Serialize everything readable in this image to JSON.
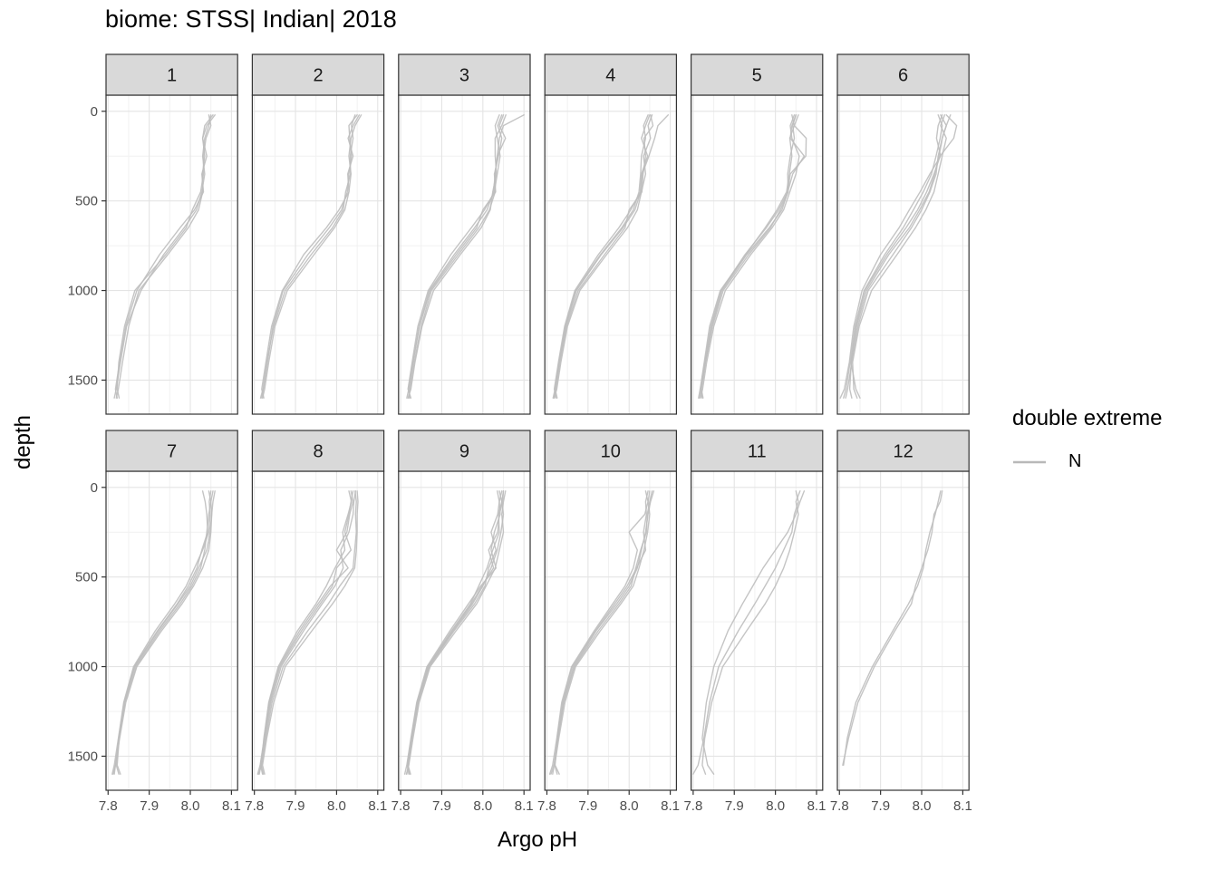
{
  "title": "biome: STSS| Indian| 2018",
  "axes": {
    "x_label": "Argo pH",
    "y_label": "depth",
    "x_ticks": [
      7.8,
      7.9,
      8.0,
      8.1
    ],
    "x_tick_labels": [
      "7.8",
      "7.9",
      "8.0",
      "8.1"
    ],
    "x_minor": [
      7.85,
      7.95,
      8.05
    ],
    "y_ticks": [
      0,
      500,
      1000,
      1500
    ],
    "y_tick_labels": [
      "0",
      "500",
      "1000",
      "1500"
    ],
    "y_minor": [
      250,
      750,
      1250
    ],
    "x_domain": [
      7.795,
      8.115
    ],
    "y_domain": [
      -90,
      1690
    ],
    "y_reversed": true
  },
  "legend": {
    "title": "double extreme",
    "entries": [
      {
        "label": "N",
        "color": "#b8b8b8"
      }
    ]
  },
  "colors": {
    "line": "#bebebe",
    "strip_fill": "#d9d9d9",
    "border": "#333333",
    "grid_major": "#e4e4e4",
    "grid_minor": "#f1f1f1",
    "tick_label": "#4d4d4d",
    "strip_label": "#1a1a1a"
  },
  "chart_data": {
    "type": "line",
    "facet_variable": "month",
    "x": "Argo pH",
    "y": "depth",
    "x_range": [
      7.8,
      8.1
    ],
    "y_range": [
      0,
      1600
    ],
    "line_color": "#bebebe",
    "series_group": "double extreme = N",
    "depths": [
      20,
      80,
      150,
      250,
      350,
      450,
      550,
      650,
      800,
      1000,
      1200,
      1400,
      1550,
      1600
    ],
    "facets": [
      {
        "label": "1",
        "profiles": [
          [
            8.055,
            8.035,
            8.03,
            8.035,
            8.03,
            8.03,
            8.02,
            7.995,
            7.945,
            7.875,
            7.85,
            7.835,
            7.825,
            7.82
          ],
          [
            8.05,
            8.045,
            8.035,
            8.03,
            8.035,
            8.028,
            8.015,
            7.985,
            7.935,
            7.88,
            7.845,
            7.83,
            7.82,
            7.815
          ],
          [
            8.06,
            8.04,
            8.03,
            8.04,
            8.028,
            8.032,
            8.01,
            7.975,
            7.925,
            7.87,
            7.843,
            7.828,
            7.818,
            7.822
          ],
          [
            8.045,
            8.05,
            8.038,
            8.032,
            8.032,
            8.025,
            8.005,
            7.99,
            7.94,
            7.865,
            7.84,
            7.826,
            7.822,
            7.827
          ]
        ]
      },
      {
        "label": "2",
        "profiles": [
          [
            8.05,
            8.03,
            8.032,
            8.036,
            8.03,
            8.026,
            8.012,
            7.982,
            7.93,
            7.87,
            7.845,
            7.832,
            7.822,
            7.818
          ],
          [
            8.06,
            8.045,
            8.035,
            8.03,
            8.035,
            8.03,
            8.02,
            7.995,
            7.945,
            7.88,
            7.85,
            7.835,
            7.825,
            7.82
          ],
          [
            8.055,
            8.04,
            8.028,
            8.04,
            8.027,
            8.03,
            8.006,
            7.975,
            7.92,
            7.868,
            7.842,
            7.828,
            7.818,
            7.823
          ],
          [
            8.045,
            8.036,
            8.04,
            8.033,
            8.034,
            8.022,
            8.016,
            7.99,
            7.938,
            7.875,
            7.847,
            7.83,
            7.821,
            7.815
          ]
        ]
      },
      {
        "label": "3",
        "profiles": [
          [
            8.1,
            8.05,
            8.04,
            8.035,
            8.03,
            8.026,
            8.01,
            7.98,
            7.93,
            7.87,
            7.845,
            7.83,
            7.82,
            7.815
          ],
          [
            8.05,
            8.04,
            8.055,
            8.035,
            8.03,
            8.03,
            8.016,
            7.99,
            7.94,
            7.875,
            7.85,
            7.833,
            7.823,
            7.82
          ],
          [
            8.04,
            8.03,
            8.035,
            8.042,
            8.035,
            8.028,
            8.004,
            7.972,
            7.922,
            7.867,
            7.842,
            7.828,
            7.818,
            7.825
          ],
          [
            8.056,
            8.046,
            8.03,
            8.03,
            8.033,
            8.024,
            8.018,
            7.996,
            7.945,
            7.88,
            7.852,
            7.835,
            7.825,
            7.818
          ],
          [
            8.046,
            8.036,
            8.046,
            8.038,
            8.028,
            8.031,
            8.0,
            7.985,
            7.935,
            7.872,
            7.846,
            7.83,
            7.82,
            7.822
          ]
        ]
      },
      {
        "label": "4",
        "profiles": [
          [
            8.095,
            8.07,
            8.062,
            8.048,
            8.032,
            8.028,
            8.014,
            7.985,
            7.932,
            7.872,
            7.846,
            7.83,
            7.82,
            7.815
          ],
          [
            8.05,
            8.04,
            8.03,
            8.045,
            8.03,
            8.027,
            8.004,
            7.975,
            7.925,
            7.868,
            7.843,
            7.828,
            7.818,
            7.822
          ],
          [
            8.056,
            8.046,
            8.052,
            8.035,
            8.04,
            8.03,
            8.02,
            7.996,
            7.945,
            7.88,
            7.85,
            7.834,
            7.824,
            7.818
          ],
          [
            8.046,
            8.035,
            8.04,
            8.03,
            8.028,
            8.024,
            8.01,
            7.982,
            7.93,
            7.87,
            7.845,
            7.83,
            7.82,
            7.825
          ],
          [
            8.052,
            8.058,
            8.036,
            8.04,
            8.034,
            8.031,
            8.0,
            7.99,
            7.94,
            7.876,
            7.848,
            7.832,
            7.822,
            7.817
          ]
        ]
      },
      {
        "label": "5",
        "profiles": [
          [
            8.04,
            8.046,
            8.075,
            8.074,
            8.036,
            8.03,
            8.016,
            7.985,
            7.93,
            7.87,
            7.845,
            7.83,
            7.82,
            7.815
          ],
          [
            8.05,
            8.04,
            8.036,
            8.07,
            8.042,
            8.03,
            8.008,
            7.978,
            7.926,
            7.868,
            7.843,
            7.828,
            7.818,
            7.822
          ],
          [
            8.046,
            8.036,
            8.04,
            8.058,
            8.05,
            8.035,
            8.02,
            7.992,
            7.94,
            7.878,
            7.85,
            7.833,
            7.823,
            7.818
          ],
          [
            8.056,
            8.046,
            8.035,
            8.04,
            8.034,
            8.027,
            8.004,
            7.975,
            7.928,
            7.866,
            7.84,
            7.827,
            7.817,
            7.813
          ],
          [
            8.05,
            8.042,
            8.046,
            8.036,
            8.03,
            8.031,
            8.012,
            7.988,
            7.935,
            7.873,
            7.847,
            7.83,
            7.82,
            7.824
          ]
        ]
      },
      {
        "label": "6",
        "profiles": [
          [
            8.06,
            8.085,
            8.078,
            8.045,
            8.03,
            8.012,
            7.99,
            7.962,
            7.915,
            7.862,
            7.84,
            7.828,
            7.84,
            7.85
          ],
          [
            8.05,
            8.04,
            8.036,
            8.046,
            8.02,
            7.996,
            7.97,
            7.945,
            7.9,
            7.855,
            7.835,
            7.824,
            7.812,
            7.802
          ],
          [
            8.046,
            8.06,
            8.05,
            8.04,
            8.035,
            8.02,
            8.0,
            7.975,
            7.93,
            7.87,
            7.845,
            7.83,
            7.82,
            7.815
          ],
          [
            8.056,
            8.046,
            8.06,
            8.05,
            8.04,
            8.03,
            8.01,
            7.985,
            7.94,
            7.878,
            7.848,
            7.832,
            7.835,
            7.843
          ],
          [
            8.04,
            8.05,
            8.045,
            8.035,
            8.024,
            8.004,
            7.98,
            7.955,
            7.91,
            7.86,
            7.838,
            7.826,
            7.816,
            7.81
          ],
          [
            8.07,
            8.06,
            8.05,
            8.042,
            8.032,
            8.018,
            7.995,
            7.97,
            7.92,
            7.866,
            7.842,
            7.829,
            7.825,
            7.83
          ]
        ]
      },
      {
        "label": "7",
        "profiles": [
          [
            8.06,
            8.055,
            8.052,
            8.05,
            8.045,
            8.03,
            8.008,
            7.98,
            7.93,
            7.87,
            7.843,
            7.828,
            7.818,
            7.812
          ],
          [
            8.055,
            8.05,
            8.052,
            8.048,
            8.04,
            8.02,
            8.0,
            7.97,
            7.922,
            7.865,
            7.84,
            7.826,
            7.82,
            7.826
          ],
          [
            8.05,
            8.046,
            8.048,
            8.045,
            8.03,
            8.01,
            7.99,
            7.962,
            7.915,
            7.862,
            7.838,
            7.825,
            7.815,
            7.81
          ],
          [
            8.045,
            8.05,
            8.045,
            8.04,
            8.035,
            8.025,
            8.004,
            7.975,
            7.926,
            7.868,
            7.841,
            7.827,
            7.822,
            7.83
          ],
          [
            8.03,
            8.036,
            8.04,
            8.042,
            8.028,
            8.016,
            7.995,
            7.968,
            7.92,
            7.864,
            7.839,
            7.826,
            7.818,
            7.815
          ]
        ]
      },
      {
        "label": "8",
        "profiles": [
          [
            8.05,
            8.052,
            8.05,
            8.05,
            8.048,
            8.044,
            8.02,
            7.99,
            7.94,
            7.875,
            7.847,
            7.83,
            7.82,
            7.825
          ],
          [
            8.045,
            8.048,
            8.046,
            8.048,
            8.044,
            8.04,
            8.008,
            7.98,
            7.93,
            7.87,
            7.843,
            7.828,
            7.818,
            7.81
          ],
          [
            8.04,
            8.035,
            8.03,
            8.02,
            8.035,
            8.0,
            7.99,
            7.96,
            7.915,
            7.862,
            7.838,
            7.825,
            7.815,
            7.82
          ],
          [
            8.035,
            8.04,
            8.032,
            8.025,
            8.0,
            8.028,
            7.985,
            7.955,
            7.91,
            7.86,
            7.836,
            7.824,
            7.814,
            7.808
          ],
          [
            8.03,
            8.036,
            8.028,
            8.015,
            8.02,
            7.996,
            7.975,
            7.95,
            7.905,
            7.858,
            7.835,
            7.823,
            7.817,
            7.822
          ],
          [
            8.046,
            8.042,
            8.04,
            8.03,
            8.01,
            8.016,
            7.996,
            7.965,
            7.92,
            7.865,
            7.84,
            7.826,
            7.816,
            7.812
          ]
        ]
      },
      {
        "label": "9",
        "profiles": [
          [
            8.055,
            8.05,
            8.046,
            8.05,
            8.04,
            8.03,
            8.008,
            7.985,
            7.935,
            7.872,
            7.845,
            7.83,
            7.82,
            7.814
          ],
          [
            8.05,
            8.046,
            8.05,
            8.044,
            8.035,
            8.02,
            8.0,
            7.975,
            7.928,
            7.868,
            7.842,
            7.827,
            7.817,
            7.822
          ],
          [
            8.046,
            8.04,
            8.042,
            8.028,
            8.02,
            8.032,
            7.995,
            7.965,
            7.92,
            7.864,
            7.839,
            7.825,
            7.815,
            7.81
          ],
          [
            8.04,
            8.046,
            8.038,
            8.04,
            8.024,
            8.01,
            7.99,
            7.97,
            7.924,
            7.866,
            7.84,
            7.826,
            7.818,
            7.824
          ],
          [
            8.035,
            8.04,
            8.036,
            8.02,
            8.032,
            8.014,
            8.005,
            7.98,
            7.93,
            7.87,
            7.843,
            7.828,
            7.819,
            7.815
          ],
          [
            8.05,
            8.048,
            8.04,
            8.036,
            8.014,
            8.026,
            7.998,
            7.972,
            7.926,
            7.867,
            7.841,
            7.826,
            7.816,
            7.82
          ]
        ]
      },
      {
        "label": "10",
        "profiles": [
          [
            8.06,
            8.052,
            8.046,
            8.04,
            8.03,
            8.02,
            8.0,
            7.97,
            7.92,
            7.865,
            7.84,
            7.827,
            7.817,
            7.81
          ],
          [
            8.05,
            8.046,
            8.05,
            8.045,
            8.036,
            8.024,
            8.01,
            7.98,
            7.93,
            7.87,
            7.844,
            7.829,
            7.819,
            7.825
          ],
          [
            8.046,
            8.04,
            8.042,
            8.035,
            8.04,
            8.018,
            7.995,
            7.965,
            7.918,
            7.862,
            7.838,
            7.825,
            7.82,
            7.83
          ],
          [
            8.04,
            8.046,
            8.038,
            8.0,
            8.02,
            8.01,
            7.99,
            7.96,
            7.915,
            7.86,
            7.836,
            7.824,
            7.814,
            7.807
          ],
          [
            8.056,
            8.05,
            8.044,
            8.042,
            8.028,
            8.016,
            8.005,
            7.975,
            7.925,
            7.867,
            7.841,
            7.827,
            7.818,
            7.814
          ]
        ]
      },
      {
        "label": "11",
        "profiles": [
          [
            8.07,
            8.06,
            8.05,
            8.03,
            8.0,
            7.97,
            7.945,
            7.92,
            7.885,
            7.85,
            7.832,
            7.822,
            7.835,
            7.85
          ],
          [
            8.05,
            8.056,
            8.046,
            8.04,
            8.02,
            8.0,
            7.975,
            7.95,
            7.91,
            7.862,
            7.84,
            7.826,
            7.812,
            7.8
          ],
          [
            8.06,
            8.05,
            8.056,
            8.046,
            8.035,
            8.02,
            8.0,
            7.975,
            7.93,
            7.872,
            7.845,
            7.828,
            7.822,
            7.83
          ]
        ]
      },
      {
        "label": "12",
        "profiles": [
          [
            8.05,
            8.045,
            8.03,
            8.025,
            8.015,
            8.0,
            7.985,
            7.975,
            7.935,
            7.885,
            7.845,
            7.822,
            7.808,
            null
          ],
          [
            8.046,
            8.04,
            8.033,
            8.02,
            8.01,
            8.004,
            7.99,
            7.968,
            7.93,
            7.88,
            7.84,
            7.819,
            7.81,
            null
          ]
        ]
      }
    ]
  }
}
